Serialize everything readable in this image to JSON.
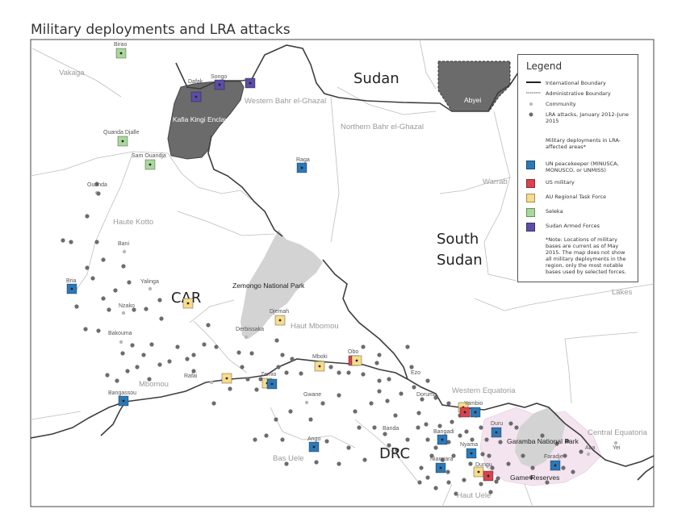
{
  "title": "Military deployments and LRA attacks",
  "colors": {
    "un": "#2c79b8",
    "us": "#d9434f",
    "au": "#f7dc8c",
    "seleka": "#a8d89b",
    "sudan": "#5c4ea6",
    "enclave": "#6b6b6b",
    "park": "#d3d3d3",
    "reserve": "#f3e4f0",
    "attack": "#6c6c6c"
  },
  "countries": {
    "sudan": "Sudan",
    "south_sudan_1": "South",
    "south_sudan_2": "Sudan",
    "car": "CAR",
    "drc": "DRC"
  },
  "regions": {
    "vakaga": "Vakaga",
    "western_bahr": "Western Bahr el-Ghazal",
    "northern_bahr": "Northern Bahr el-Ghazal",
    "warrab": "Warrab",
    "lakes": "Lakes",
    "haute_kotto": "Haute Kotto",
    "haut_mbomou": "Haut Mbomou",
    "mbomou": "Mbomou",
    "western_equatoria": "Western Equatoria",
    "central_equatoria": "Central Equatoria",
    "bas_uele": "Bas Uele",
    "haut_uele": "Haut Uele"
  },
  "areas": {
    "kafia": "Kafia Kingi Enclave",
    "abyei": "Abyei",
    "zemongo": "Zemongo National Park",
    "garamba": "Garamba National Park",
    "reserves": "Game Reserves"
  },
  "towns": {
    "birao": "Birao",
    "dafak": "Dafak",
    "songo": "Songo",
    "quanda_djalle": "Quanda Djalle",
    "sam_ouandja": "Sam Ouandja",
    "ouanda": "Ouanda",
    "raga": "Raga",
    "bani": "Bani",
    "bria": "Bria",
    "yalinga": "Yalinga",
    "nzako": "Nzako",
    "bakouma": "Bakouma",
    "djemah": "Djemah",
    "derbissaka": "Derbissaka",
    "mboki": "Mboki",
    "obo": "Obo",
    "rafai": "Rafai",
    "zemio": "Zemio",
    "ezo": "Ezo",
    "bangassou": "Bangassou",
    "gwane": "Gwane",
    "doruma": "Doruma",
    "yambio": "Yambio",
    "duru": "Duru",
    "bangadi": "Bangadi",
    "dungu": "Dungu",
    "faradje": "Faradje",
    "aba": "Aba",
    "yei": "Yei",
    "niangara": "Niangara",
    "ango": "Ango",
    "banda": "Banda",
    "nyama": "Nyama"
  },
  "legend": {
    "title": "Legend",
    "intl": "International Boundary",
    "admin": "Administrative Boundary",
    "community": "Community",
    "attacks": "LRA attacks, January 2012–June 2015",
    "deploy_header": "Military deployments in LRA-affected areas*",
    "un": "UN peacekeeper (MINUSCA, MONUSCO, or UNMISS)",
    "us": "US military",
    "au": "AU Regional Task Force",
    "seleka": "Seleka",
    "sudan": "Sudan Armed Forces",
    "note": "*Note: Locations of military bases are current as of May 2015. The map does not show all military deployments in the region, only the most notable bases used by selected forces."
  }
}
